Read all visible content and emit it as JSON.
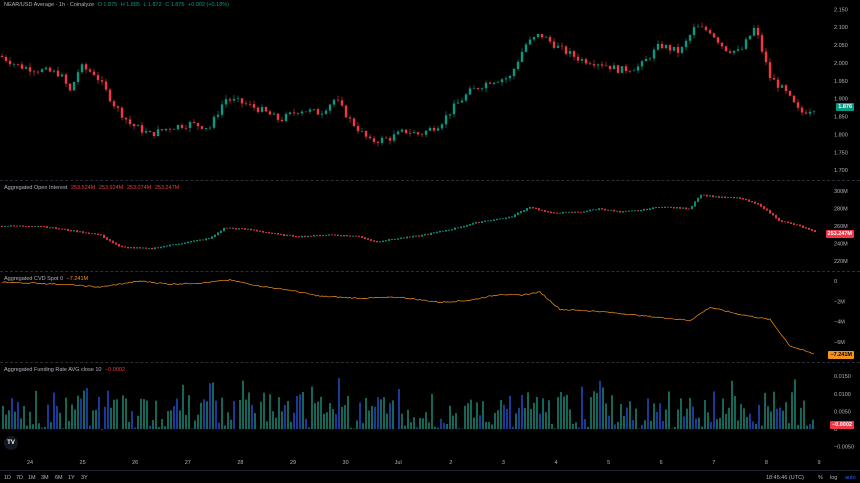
{
  "legends": {
    "price": {
      "title": "NEAR/USD Average · 1h · Coinalyze",
      "o": "O 1.875",
      "h": "H 1.885",
      "l": "L 1.872",
      "c": "C 1.876",
      "chg": "+0.002 (+0.18%)"
    },
    "oi": {
      "title": "Aggregated Open Interest",
      "o": "253.524M",
      "h": "253.924M",
      "l": "253.074M",
      "c": "253.247M"
    },
    "cvd": {
      "title": "Aggregated CVD Spot 0",
      "v": "−7.241M"
    },
    "funding": {
      "title": "Aggregated Funding Rate AVG close 10",
      "v": "−0.0002"
    }
  },
  "tags": {
    "price": "1.876",
    "oi": "253.247M",
    "cvd": "−7.241M",
    "funding": "−0.0002"
  },
  "colors": {
    "up": "#089981",
    "down": "#f23645",
    "cvd": "#f7931a",
    "fund_pos": "#22ab94",
    "fund_neg": "#2962ff"
  },
  "x_labels": [
    "24",
    "25",
    "26",
    "27",
    "28",
    "29",
    "30",
    "Jul",
    "2",
    "3",
    "4",
    "5",
    "6",
    "7",
    "8",
    "9"
  ],
  "bottom": {
    "timeframes": [
      "1D",
      "7D",
      "1M",
      "3M",
      "6M",
      "1Y",
      "3Y"
    ],
    "clock": "18:45:46 (UTC)",
    "opts": [
      "%",
      "log",
      "auto"
    ]
  },
  "chart_data": [
    {
      "type": "candlestick",
      "title": "NEAR/USD Average · 1h · Coinalyze",
      "y_ticks": [
        2.15,
        2.1,
        2.05,
        2.0,
        1.95,
        1.9,
        1.85,
        1.8,
        1.75,
        1.7
      ],
      "ylim": [
        1.695,
        2.165
      ],
      "close_path": [
        [
          0,
          2.02
        ],
        [
          20,
          1.99
        ],
        [
          40,
          1.98
        ],
        [
          60,
          1.97
        ],
        [
          70,
          1.92
        ],
        [
          80,
          1.99
        ],
        [
          95,
          1.97
        ],
        [
          115,
          1.88
        ],
        [
          130,
          1.83
        ],
        [
          150,
          1.8
        ],
        [
          170,
          1.82
        ],
        [
          190,
          1.83
        ],
        [
          210,
          1.82
        ],
        [
          225,
          1.9
        ],
        [
          240,
          1.89
        ],
        [
          260,
          1.87
        ],
        [
          280,
          1.84
        ],
        [
          300,
          1.87
        ],
        [
          320,
          1.86
        ],
        [
          335,
          1.9
        ],
        [
          350,
          1.84
        ],
        [
          370,
          1.78
        ],
        [
          390,
          1.79
        ],
        [
          405,
          1.81
        ],
        [
          420,
          1.8
        ],
        [
          440,
          1.83
        ],
        [
          455,
          1.88
        ],
        [
          470,
          1.92
        ],
        [
          490,
          1.95
        ],
        [
          510,
          1.96
        ],
        [
          525,
          2.05
        ],
        [
          540,
          2.08
        ],
        [
          560,
          2.04
        ],
        [
          580,
          2.01
        ],
        [
          600,
          2.0
        ],
        [
          620,
          1.98
        ],
        [
          640,
          1.99
        ],
        [
          660,
          2.05
        ],
        [
          680,
          2.03
        ],
        [
          695,
          2.1
        ],
        [
          710,
          2.09
        ],
        [
          725,
          2.04
        ],
        [
          740,
          2.03
        ],
        [
          755,
          2.1
        ],
        [
          770,
          1.96
        ],
        [
          785,
          1.92
        ],
        [
          800,
          1.86
        ],
        [
          815,
          1.876
        ]
      ]
    },
    {
      "type": "line",
      "title": "Aggregated Open Interest",
      "y_ticks": [
        "300M",
        "280M",
        "260M",
        "240M",
        "220M"
      ],
      "ylim": [
        212,
        306
      ],
      "path": [
        [
          0,
          260
        ],
        [
          40,
          260
        ],
        [
          70,
          255
        ],
        [
          100,
          250
        ],
        [
          120,
          236
        ],
        [
          150,
          234
        ],
        [
          180,
          240
        ],
        [
          210,
          246
        ],
        [
          225,
          258
        ],
        [
          250,
          256
        ],
        [
          280,
          250
        ],
        [
          300,
          248
        ],
        [
          330,
          250
        ],
        [
          360,
          248
        ],
        [
          375,
          242
        ],
        [
          400,
          246
        ],
        [
          420,
          249
        ],
        [
          450,
          256
        ],
        [
          480,
          265
        ],
        [
          510,
          270
        ],
        [
          530,
          282
        ],
        [
          550,
          275
        ],
        [
          580,
          276
        ],
        [
          600,
          280
        ],
        [
          620,
          276
        ],
        [
          640,
          278
        ],
        [
          660,
          282
        ],
        [
          690,
          280
        ],
        [
          700,
          296
        ],
        [
          720,
          293
        ],
        [
          740,
          292
        ],
        [
          760,
          284
        ],
        [
          780,
          266
        ],
        [
          800,
          260
        ],
        [
          815,
          253.2
        ]
      ]
    },
    {
      "type": "line",
      "title": "Aggregated CVD Spot 0",
      "y_ticks": [
        "0",
        "−2M",
        "−4M",
        "−6M"
      ],
      "ylim": [
        -7.6,
        0.3
      ],
      "path": [
        [
          0,
          -0.1
        ],
        [
          60,
          -0.3
        ],
        [
          100,
          -0.6
        ],
        [
          140,
          0.0
        ],
        [
          170,
          -0.3
        ],
        [
          200,
          -0.2
        ],
        [
          230,
          0.1
        ],
        [
          260,
          -0.5
        ],
        [
          290,
          -0.9
        ],
        [
          320,
          -1.5
        ],
        [
          360,
          -1.7
        ],
        [
          400,
          -1.6
        ],
        [
          440,
          -2.1
        ],
        [
          470,
          -1.9
        ],
        [
          500,
          -1.3
        ],
        [
          520,
          -1.4
        ],
        [
          540,
          -1.1
        ],
        [
          560,
          -2.8
        ],
        [
          600,
          -3.0
        ],
        [
          630,
          -3.3
        ],
        [
          660,
          -3.6
        ],
        [
          690,
          -3.9
        ],
        [
          710,
          -2.6
        ],
        [
          740,
          -3.3
        ],
        [
          770,
          -3.8
        ],
        [
          790,
          -6.4
        ],
        [
          815,
          -7.241
        ]
      ]
    },
    {
      "type": "bar",
      "title": "Aggregated Funding Rate AVG close 10",
      "y_ticks": [
        "0.0150",
        "0.0100",
        "0.0050",
        "0",
        "−0.0050"
      ],
      "ylim": [
        -0.0065,
        0.0162
      ]
    }
  ]
}
